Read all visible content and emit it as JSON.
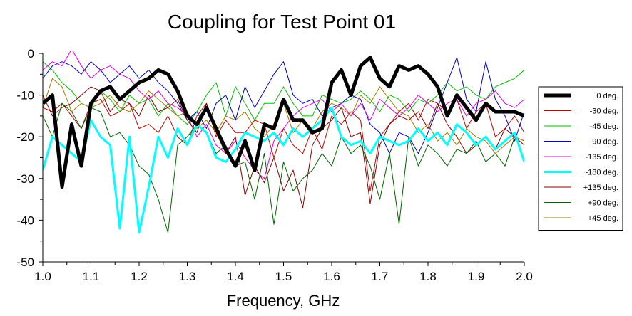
{
  "chart_data": {
    "type": "line",
    "title": "Coupling for Test Point 01",
    "xlabel": "Frequency, GHz",
    "ylabel": "",
    "xlim": [
      1.0,
      2.0
    ],
    "ylim": [
      -50,
      0
    ],
    "xticks": [
      "1.0",
      "1.1",
      "1.2",
      "1.3",
      "1.4",
      "1.5",
      "1.6",
      "1.7",
      "1.8",
      "1.9",
      "2.0"
    ],
    "yticks": [
      "0",
      "-10",
      "-20",
      "-30",
      "-40",
      "-50"
    ],
    "grid": false,
    "legend_position": "right",
    "x": [
      1.0,
      1.02,
      1.04,
      1.06,
      1.08,
      1.1,
      1.12,
      1.14,
      1.16,
      1.18,
      1.2,
      1.22,
      1.24,
      1.26,
      1.28,
      1.3,
      1.32,
      1.34,
      1.36,
      1.38,
      1.4,
      1.42,
      1.44,
      1.46,
      1.48,
      1.5,
      1.52,
      1.54,
      1.56,
      1.58,
      1.6,
      1.62,
      1.64,
      1.66,
      1.68,
      1.7,
      1.72,
      1.74,
      1.76,
      1.78,
      1.8,
      1.82,
      1.84,
      1.86,
      1.88,
      1.9,
      1.92,
      1.94,
      1.96,
      1.98,
      2.0
    ],
    "series": [
      {
        "name": "0 deg.",
        "color": "#000000",
        "width": 5,
        "values": [
          -12,
          -10,
          -32,
          -17,
          -27,
          -12,
          -9,
          -8,
          -11,
          -9,
          -7,
          -6,
          -4,
          -5,
          -9,
          -15,
          -17,
          -13,
          -18,
          -23,
          -27,
          -21,
          -28,
          -17,
          -18,
          -11,
          -16,
          -16,
          -19,
          -18,
          -7,
          -4,
          -10,
          -3,
          -1,
          -6,
          -8,
          -3,
          -4,
          -3,
          -5,
          -8,
          -15,
          -10,
          -13,
          -16,
          -12,
          -14,
          -14,
          -14,
          -15
        ]
      },
      {
        "name": "-30 deg.",
        "color": "#c00000",
        "width": 1,
        "values": [
          -13,
          -14,
          -12,
          -15,
          -18,
          -12,
          -11,
          -15,
          -14,
          -12,
          -18,
          -17,
          -19,
          -15,
          -20,
          -22,
          -15,
          -12,
          -20,
          -16,
          -19,
          -19,
          -16,
          -17,
          -25,
          -18,
          -22,
          -24,
          -18,
          -23,
          -15,
          -17,
          -14,
          -16,
          -33,
          -20,
          -17,
          -14,
          -12,
          -16,
          -11,
          -12,
          -14,
          -11,
          -18,
          -14,
          -12,
          -20,
          -18,
          -15,
          -19
        ]
      },
      {
        "name": "-45 deg.",
        "color": "#00c000",
        "width": 1,
        "values": [
          -2,
          -4,
          -7,
          -9,
          -12,
          -13,
          -9,
          -11,
          -14,
          -10,
          -12,
          -11,
          -15,
          -12,
          -15,
          -17,
          -14,
          -10,
          -7,
          -15,
          -8,
          -12,
          -16,
          -12,
          -12,
          -8,
          -12,
          -15,
          -15,
          -10,
          -11,
          -12,
          -11,
          -9,
          -11,
          -14,
          -10,
          -11,
          -14,
          -11,
          -12,
          -10,
          -7,
          -9,
          -8,
          -10,
          -11,
          -8,
          -7,
          -6,
          -4
        ]
      },
      {
        "name": "-90 deg.",
        "color": "#0000c0",
        "width": 1,
        "values": [
          -6,
          -3,
          -2,
          -3,
          -5,
          -2,
          -4,
          -7,
          -5,
          -3,
          -6,
          -4,
          -7,
          -9,
          -12,
          -16,
          -14,
          -18,
          -12,
          -10,
          -16,
          -8,
          -13,
          -9,
          -5,
          -2,
          -10,
          -12,
          -11,
          -15,
          -13,
          -12,
          -10,
          -11,
          -17,
          -19,
          -24,
          -19,
          -20,
          -24,
          -19,
          -13,
          -7,
          -1,
          -11,
          -14,
          -2,
          -11,
          -15,
          -21,
          -14
        ]
      },
      {
        "name": "-135 deg.",
        "color": "#e000e0",
        "width": 1,
        "values": [
          -4,
          -2,
          -3,
          1,
          -3,
          -6,
          -4,
          -3,
          -5,
          -6,
          -9,
          -11,
          -9,
          -12,
          -13,
          -15,
          -20,
          -17,
          -22,
          -24,
          -21,
          -25,
          -28,
          -30,
          -21,
          -18,
          -15,
          -13,
          -12,
          -11,
          -14,
          -12,
          -15,
          -12,
          -16,
          -11,
          -13,
          -15,
          -13,
          -10,
          -12,
          -14,
          -12,
          -11,
          -15,
          -12,
          -11,
          -9,
          -12,
          -13,
          -11
        ]
      },
      {
        "name": "-180 deg.",
        "color": "#00ffff",
        "width": 3,
        "values": [
          -28,
          -20,
          -22,
          -24,
          -26,
          -16,
          -20,
          -22,
          -42,
          -20,
          -43,
          -32,
          -20,
          -25,
          -18,
          -22,
          -17,
          -19,
          -25,
          -26,
          -23,
          -19,
          -20,
          -21,
          -19,
          -22,
          -18,
          -20,
          -18,
          -16,
          -13,
          -20,
          -22,
          -21,
          -24,
          -20,
          -21,
          -22,
          -21,
          -18,
          -21,
          -19,
          -22,
          -17,
          -19,
          -22,
          -20,
          -23,
          -21,
          -19,
          -26
        ]
      },
      {
        "name": "+135 deg.",
        "color": "#800000",
        "width": 1,
        "values": [
          -10,
          -15,
          -13,
          -12,
          -10,
          -8,
          -9,
          -14,
          -11,
          -12,
          -15,
          -10,
          -14,
          -13,
          -11,
          -16,
          -19,
          -12,
          -19,
          -24,
          -20,
          -34,
          -27,
          -31,
          -25,
          -33,
          -28,
          -37,
          -22,
          -18,
          -16,
          -13,
          -20,
          -19,
          -36,
          -22,
          -17,
          -15,
          -16,
          -14,
          -18,
          -12,
          -17,
          -20,
          -24,
          -22,
          -20,
          -23,
          -18,
          -20,
          -22
        ]
      },
      {
        "name": "+90 deg.",
        "color": "#006400",
        "width": 1,
        "values": [
          -15,
          -20,
          -12,
          -14,
          -18,
          -13,
          -14,
          -20,
          -19,
          -22,
          -27,
          -29,
          -35,
          -43,
          -22,
          -20,
          -17,
          -19,
          -24,
          -22,
          -27,
          -26,
          -35,
          -24,
          -41,
          -26,
          -33,
          -30,
          -28,
          -24,
          -27,
          -20,
          -24,
          -22,
          -27,
          -35,
          -24,
          -41,
          -20,
          -27,
          -22,
          -24,
          -27,
          -23,
          -24,
          -21,
          -26,
          -24,
          -27,
          -20,
          -21
        ]
      },
      {
        "name": "+45 deg.",
        "color": "#a07800",
        "width": 1,
        "values": [
          -13,
          -6,
          -8,
          -14,
          -12,
          -13,
          -12,
          -10,
          -13,
          -14,
          -12,
          -9,
          -11,
          -13,
          -15,
          -14,
          -18,
          -16,
          -19,
          -15,
          -16,
          -14,
          -18,
          -20,
          -17,
          -12,
          -19,
          -16,
          -18,
          -14,
          -12,
          -13,
          -15,
          -10,
          -12,
          -8,
          -11,
          -14,
          -15,
          -19,
          -17,
          -21,
          -19,
          -22,
          -18,
          -20,
          -21,
          -24,
          -22,
          -20,
          -21
        ]
      }
    ]
  }
}
